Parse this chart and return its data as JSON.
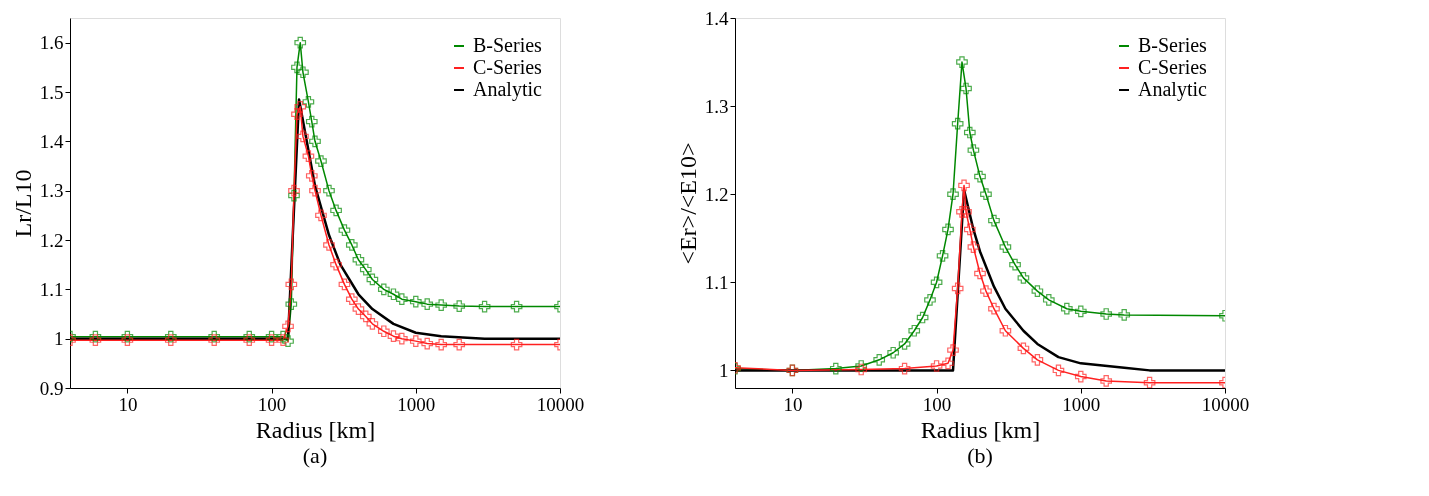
{
  "chart_data": [
    {
      "type": "line",
      "xlabel": "Radius [km]",
      "ylabel": "Lr/L10",
      "log": "x",
      "grid": false,
      "legend": "top right",
      "annotations": [
        "(a)"
      ],
      "xlim": [
        4,
        10000
      ],
      "xticks": [
        10,
        100,
        1000,
        10000
      ],
      "ylim": [
        0.9,
        1.65
      ],
      "yticks": [
        0.9,
        {
          "value": 1,
          "label": "1"
        },
        1.1,
        1.2,
        1.3,
        1.4,
        1.5,
        1.6
      ],
      "series": [
        {
          "name": "B-Series",
          "color": "#008800",
          "marker": "cross",
          "x": [
            4,
            6,
            10,
            20,
            40,
            70,
            100,
            120,
            130,
            137,
            143,
            150,
            158,
            165,
            180,
            190,
            200,
            220,
            250,
            280,
            320,
            360,
            400,
            450,
            500,
            600,
            700,
            800,
            1000,
            1200,
            1500,
            2000,
            3000,
            5000,
            10000
          ],
          "values": [
            1.004,
            1.004,
            1.004,
            1.004,
            1.004,
            1.004,
            1.004,
            1.004,
            0.995,
            1.07,
            1.29,
            1.55,
            1.6,
            1.54,
            1.48,
            1.44,
            1.4,
            1.36,
            1.3,
            1.26,
            1.22,
            1.19,
            1.16,
            1.14,
            1.12,
            1.1,
            1.09,
            1.08,
            1.075,
            1.07,
            1.068,
            1.066,
            1.065,
            1.065,
            1.065
          ]
        },
        {
          "name": "C-Series",
          "color": "#ff2020",
          "marker": "cross",
          "x": [
            4,
            6,
            10,
            20,
            40,
            70,
            100,
            120,
            130,
            137,
            143,
            150,
            158,
            165,
            180,
            190,
            200,
            220,
            250,
            280,
            320,
            360,
            400,
            450,
            500,
            600,
            700,
            800,
            1000,
            1200,
            1500,
            2000,
            5000,
            10000
          ],
          "values": [
            0.997,
            0.997,
            0.997,
            0.997,
            0.997,
            0.997,
            0.997,
            0.997,
            1.025,
            1.11,
            1.3,
            1.455,
            1.47,
            1.41,
            1.37,
            1.33,
            1.3,
            1.25,
            1.19,
            1.15,
            1.11,
            1.08,
            1.06,
            1.045,
            1.03,
            1.015,
            1.005,
            1.0,
            0.995,
            0.99,
            0.988,
            0.988,
            0.988,
            0.988
          ]
        },
        {
          "name": "Analytic",
          "color": "#000000",
          "marker": "none",
          "x": [
            4,
            130,
            155,
            200,
            250,
            300,
            400,
            500,
            700,
            1000,
            1500,
            3000,
            10000
          ],
          "values": [
            1.0,
            1.0,
            1.485,
            1.31,
            1.21,
            1.15,
            1.09,
            1.06,
            1.03,
            1.012,
            1.005,
            1.0,
            1.0
          ]
        }
      ]
    },
    {
      "type": "line",
      "xlabel": "Radius [km]",
      "ylabel": "<Er>/<E10>",
      "log": "x",
      "grid": false,
      "legend": "top right",
      "annotations": [
        "(b)"
      ],
      "xlim": [
        4,
        10000
      ],
      "xticks": [
        10,
        100,
        1000,
        10000
      ],
      "ylim": [
        0.98,
        1.4
      ],
      "yticks": [
        {
          "value": 1,
          "label": "1"
        },
        1.1,
        1.2,
        1.3,
        1.4
      ],
      "series": [
        {
          "name": "B-Series",
          "color": "#008800",
          "marker": "cross",
          "x": [
            4,
            10,
            20,
            30,
            40,
            50,
            60,
            70,
            80,
            90,
            100,
            110,
            120,
            130,
            140,
            150,
            160,
            170,
            180,
            200,
            220,
            250,
            300,
            350,
            400,
            500,
            600,
            800,
            1000,
            1500,
            2000,
            10000
          ],
          "values": [
            1.002,
            1.0,
            1.002,
            1.005,
            1.012,
            1.02,
            1.03,
            1.045,
            1.06,
            1.08,
            1.1,
            1.13,
            1.16,
            1.2,
            1.28,
            1.35,
            1.32,
            1.27,
            1.25,
            1.22,
            1.2,
            1.17,
            1.14,
            1.12,
            1.105,
            1.09,
            1.08,
            1.07,
            1.067,
            1.064,
            1.063,
            1.062
          ]
        },
        {
          "name": "C-Series",
          "color": "#ff2020",
          "marker": "cross",
          "x": [
            4,
            10,
            30,
            60,
            100,
            120,
            130,
            140,
            150,
            155,
            160,
            170,
            180,
            200,
            220,
            250,
            300,
            400,
            500,
            700,
            1000,
            1500,
            3000,
            10000
          ],
          "values": [
            1.003,
            1.0,
            1.001,
            1.002,
            1.005,
            1.008,
            1.023,
            1.093,
            1.18,
            1.21,
            1.18,
            1.16,
            1.14,
            1.11,
            1.09,
            1.07,
            1.045,
            1.025,
            1.012,
            1.0,
            0.993,
            0.988,
            0.986,
            0.986
          ]
        },
        {
          "name": "Analytic",
          "color": "#000000",
          "marker": "none",
          "x": [
            4,
            130,
            155,
            180,
            200,
            250,
            300,
            400,
            500,
            700,
            1000,
            2000,
            3000,
            10000
          ],
          "values": [
            1.0,
            1.0,
            1.205,
            1.16,
            1.135,
            1.095,
            1.07,
            1.045,
            1.03,
            1.015,
            1.008,
            1.003,
            1.0,
            1.0
          ]
        }
      ]
    }
  ]
}
